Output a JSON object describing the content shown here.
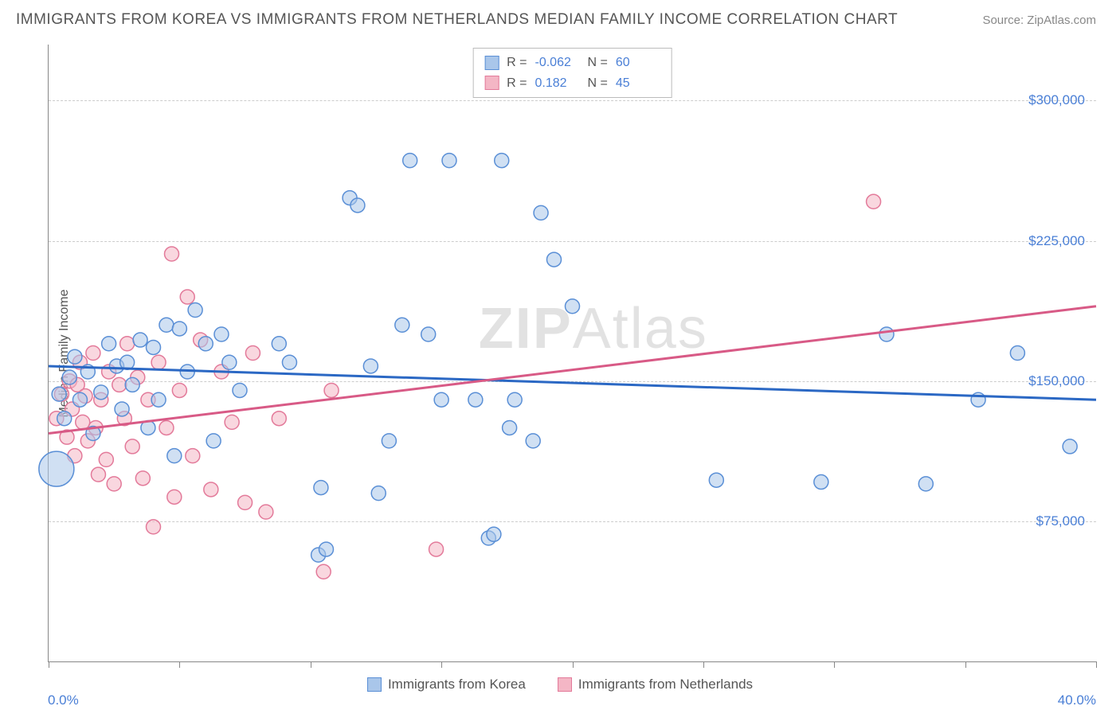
{
  "title": "IMMIGRANTS FROM KOREA VS IMMIGRANTS FROM NETHERLANDS MEDIAN FAMILY INCOME CORRELATION CHART",
  "source_label": "Source: ZipAtlas.com",
  "y_axis_label": "Median Family Income",
  "watermark": {
    "bold": "ZIP",
    "thin": "Atlas"
  },
  "chart": {
    "type": "scatter",
    "background_color": "#ffffff",
    "grid_color": "#cccccc",
    "axis_color": "#888888",
    "tick_label_color": "#4a7fd6",
    "xlim": [
      0,
      40
    ],
    "ylim": [
      0,
      330000
    ],
    "x_ticks_minor": [
      0,
      5,
      10,
      15,
      20,
      25,
      30,
      35,
      40
    ],
    "x_tick_labels": {
      "left": "0.0%",
      "right": "40.0%"
    },
    "y_grid_values": [
      75000,
      150000,
      225000,
      300000
    ],
    "y_tick_labels": [
      "$75,000",
      "$150,000",
      "$225,000",
      "$300,000"
    ],
    "series": [
      {
        "name": "Immigrants from Korea",
        "fill_color": "#a9c6ea",
        "stroke_color": "#5a8fd6",
        "fill_opacity": 0.55,
        "marker_radius": 9,
        "regression": {
          "y_at_x0": 158000,
          "y_at_xmax": 140000,
          "line_color": "#2b68c4",
          "line_width": 3
        },
        "R": "-0.062",
        "N": "60",
        "points": [
          {
            "x": 0.3,
            "y": 103000,
            "r": 22
          },
          {
            "x": 0.4,
            "y": 143000
          },
          {
            "x": 0.6,
            "y": 130000
          },
          {
            "x": 0.8,
            "y": 152000
          },
          {
            "x": 1.0,
            "y": 163000
          },
          {
            "x": 1.2,
            "y": 140000
          },
          {
            "x": 1.5,
            "y": 155000
          },
          {
            "x": 1.7,
            "y": 122000
          },
          {
            "x": 2.0,
            "y": 144000
          },
          {
            "x": 2.3,
            "y": 170000
          },
          {
            "x": 2.6,
            "y": 158000
          },
          {
            "x": 2.8,
            "y": 135000
          },
          {
            "x": 3.0,
            "y": 160000
          },
          {
            "x": 3.2,
            "y": 148000
          },
          {
            "x": 3.5,
            "y": 172000
          },
          {
            "x": 3.8,
            "y": 125000
          },
          {
            "x": 4.0,
            "y": 168000
          },
          {
            "x": 4.2,
            "y": 140000
          },
          {
            "x": 4.5,
            "y": 180000
          },
          {
            "x": 4.8,
            "y": 110000
          },
          {
            "x": 5.0,
            "y": 178000
          },
          {
            "x": 5.3,
            "y": 155000
          },
          {
            "x": 5.6,
            "y": 188000
          },
          {
            "x": 6.0,
            "y": 170000
          },
          {
            "x": 6.3,
            "y": 118000
          },
          {
            "x": 6.6,
            "y": 175000
          },
          {
            "x": 6.9,
            "y": 160000
          },
          {
            "x": 7.3,
            "y": 145000
          },
          {
            "x": 8.8,
            "y": 170000
          },
          {
            "x": 9.2,
            "y": 160000
          },
          {
            "x": 10.3,
            "y": 57000
          },
          {
            "x": 10.6,
            "y": 60000
          },
          {
            "x": 10.4,
            "y": 93000
          },
          {
            "x": 11.5,
            "y": 248000
          },
          {
            "x": 11.8,
            "y": 244000
          },
          {
            "x": 12.3,
            "y": 158000
          },
          {
            "x": 12.6,
            "y": 90000
          },
          {
            "x": 13.0,
            "y": 118000
          },
          {
            "x": 13.5,
            "y": 180000
          },
          {
            "x": 13.8,
            "y": 268000
          },
          {
            "x": 14.5,
            "y": 175000
          },
          {
            "x": 15.0,
            "y": 140000
          },
          {
            "x": 15.3,
            "y": 268000
          },
          {
            "x": 16.3,
            "y": 140000
          },
          {
            "x": 16.8,
            "y": 66000
          },
          {
            "x": 17.0,
            "y": 68000
          },
          {
            "x": 17.3,
            "y": 268000
          },
          {
            "x": 17.6,
            "y": 125000
          },
          {
            "x": 17.8,
            "y": 140000
          },
          {
            "x": 18.5,
            "y": 118000
          },
          {
            "x": 18.8,
            "y": 240000
          },
          {
            "x": 19.3,
            "y": 215000
          },
          {
            "x": 20.0,
            "y": 190000
          },
          {
            "x": 25.5,
            "y": 97000
          },
          {
            "x": 29.5,
            "y": 96000
          },
          {
            "x": 32.0,
            "y": 175000
          },
          {
            "x": 33.5,
            "y": 95000
          },
          {
            "x": 35.5,
            "y": 140000
          },
          {
            "x": 37.0,
            "y": 165000
          },
          {
            "x": 39.0,
            "y": 115000
          }
        ]
      },
      {
        "name": "Immigrants from Netherlands",
        "fill_color": "#f4b6c5",
        "stroke_color": "#e37a9a",
        "fill_opacity": 0.55,
        "marker_radius": 9,
        "regression": {
          "y_at_x0": 122000,
          "y_at_xmax": 190000,
          "line_color": "#d85a86",
          "line_width": 3
        },
        "R": "0.182",
        "N": "45",
        "points": [
          {
            "x": 0.3,
            "y": 130000
          },
          {
            "x": 0.5,
            "y": 143000
          },
          {
            "x": 0.7,
            "y": 120000
          },
          {
            "x": 0.8,
            "y": 150000
          },
          {
            "x": 0.9,
            "y": 135000
          },
          {
            "x": 1.0,
            "y": 110000
          },
          {
            "x": 1.1,
            "y": 148000
          },
          {
            "x": 1.2,
            "y": 160000
          },
          {
            "x": 1.3,
            "y": 128000
          },
          {
            "x": 1.4,
            "y": 142000
          },
          {
            "x": 1.5,
            "y": 118000
          },
          {
            "x": 1.7,
            "y": 165000
          },
          {
            "x": 1.8,
            "y": 125000
          },
          {
            "x": 1.9,
            "y": 100000
          },
          {
            "x": 2.0,
            "y": 140000
          },
          {
            "x": 2.2,
            "y": 108000
          },
          {
            "x": 2.3,
            "y": 155000
          },
          {
            "x": 2.5,
            "y": 95000
          },
          {
            "x": 2.7,
            "y": 148000
          },
          {
            "x": 2.9,
            "y": 130000
          },
          {
            "x": 3.0,
            "y": 170000
          },
          {
            "x": 3.2,
            "y": 115000
          },
          {
            "x": 3.4,
            "y": 152000
          },
          {
            "x": 3.6,
            "y": 98000
          },
          {
            "x": 3.8,
            "y": 140000
          },
          {
            "x": 4.0,
            "y": 72000
          },
          {
            "x": 4.2,
            "y": 160000
          },
          {
            "x": 4.5,
            "y": 125000
          },
          {
            "x": 4.7,
            "y": 218000
          },
          {
            "x": 4.8,
            "y": 88000
          },
          {
            "x": 5.0,
            "y": 145000
          },
          {
            "x": 5.3,
            "y": 195000
          },
          {
            "x": 5.5,
            "y": 110000
          },
          {
            "x": 5.8,
            "y": 172000
          },
          {
            "x": 6.2,
            "y": 92000
          },
          {
            "x": 6.6,
            "y": 155000
          },
          {
            "x": 7.0,
            "y": 128000
          },
          {
            "x": 7.5,
            "y": 85000
          },
          {
            "x": 7.8,
            "y": 165000
          },
          {
            "x": 8.3,
            "y": 80000
          },
          {
            "x": 8.8,
            "y": 130000
          },
          {
            "x": 10.5,
            "y": 48000
          },
          {
            "x": 10.8,
            "y": 145000
          },
          {
            "x": 14.8,
            "y": 60000
          },
          {
            "x": 31.5,
            "y": 246000
          }
        ]
      }
    ]
  }
}
